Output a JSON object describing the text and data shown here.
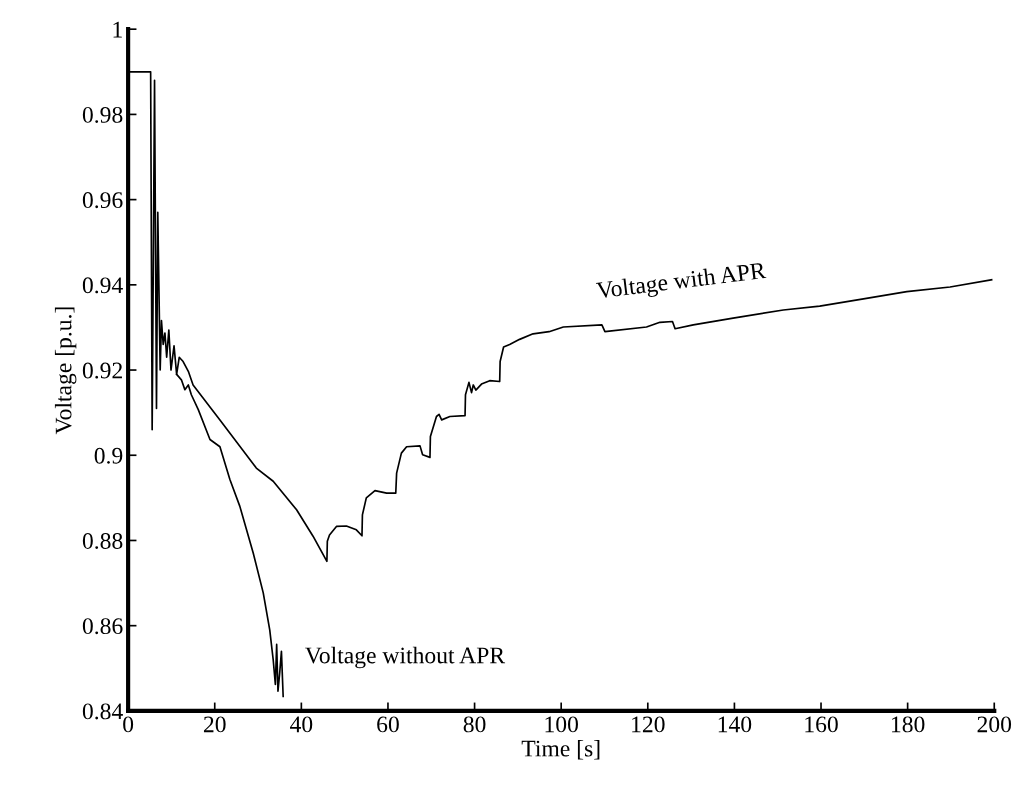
{
  "chart_data": {
    "type": "line",
    "xlabel": "Time [s]",
    "ylabel": "Voltage [p.u.]",
    "xlim": [
      0,
      200
    ],
    "ylim": [
      0.84,
      1
    ],
    "xticks": [
      0,
      20,
      40,
      60,
      80,
      100,
      120,
      140,
      160,
      180,
      200
    ],
    "yticks": [
      0.84,
      0.86,
      0.88,
      {
        "value": 0.9,
        "label": "0.9"
      },
      0.92,
      0.94,
      0.96,
      0.98,
      1
    ],
    "grid": false,
    "legend": false,
    "marker": "none",
    "line_style": "solid",
    "series": [
      {
        "name": "Voltage with APR",
        "color": "#000000",
        "x": [
          0,
          5.2,
          5.55,
          6.1,
          6.55,
          6.85,
          7.4,
          7.7,
          8.1,
          8.5,
          8.9,
          9.4,
          9.9,
          10.6,
          11.2,
          11.8,
          12.7,
          13.9,
          15.0,
          21.2,
          29.6,
          33.5,
          38.9,
          42.7,
          45.9,
          46.0,
          46.5,
          48.1,
          50.4,
          52.7,
          54.0,
          54.1,
          55.0,
          57.0,
          59.7,
          61.8,
          62.0,
          63.1,
          64.3,
          67.4,
          68.0,
          69.7,
          69.8,
          71.2,
          71.8,
          72.4,
          74.3,
          77.8,
          77.9,
          78.7,
          79.3,
          79.7,
          80.3,
          81.6,
          83.5,
          85.8,
          85.9,
          86.7,
          88.1,
          90.4,
          93.5,
          97.2,
          100.5,
          109.4,
          110.1,
          119.7,
          122.8,
          125.7,
          126.3,
          130.5,
          139.7,
          151.3,
          159.7,
          169.8,
          179.8,
          189.8,
          199.4
        ],
        "values": [
          0.99,
          0.99,
          0.906,
          0.988,
          0.911,
          0.957,
          0.92,
          0.9316,
          0.926,
          0.9287,
          0.923,
          0.9294,
          0.92,
          0.9257,
          0.919,
          0.923,
          0.922,
          0.9197,
          0.9165,
          0.9083,
          0.897,
          0.8939,
          0.8872,
          0.881,
          0.8751,
          0.8798,
          0.8813,
          0.8833,
          0.8834,
          0.8825,
          0.8811,
          0.886,
          0.89,
          0.8917,
          0.8911,
          0.8911,
          0.8958,
          0.9005,
          0.902,
          0.9022,
          0.9001,
          0.8995,
          0.9044,
          0.9091,
          0.9096,
          0.9083,
          0.9091,
          0.9093,
          0.9142,
          0.9171,
          0.9147,
          0.9165,
          0.9153,
          0.9167,
          0.9175,
          0.9173,
          0.922,
          0.9254,
          0.926,
          0.9272,
          0.9285,
          0.929,
          0.9301,
          0.9306,
          0.929,
          0.9301,
          0.9312,
          0.9314,
          0.9297,
          0.9306,
          0.9322,
          0.9341,
          0.935,
          0.9367,
          0.9384,
          0.9395,
          0.9412
        ]
      },
      {
        "name": "Voltage without APR",
        "color": "#000000",
        "x": [
          11.2,
          12.3,
          13.1,
          13.9,
          14.6,
          16.2,
          18.9,
          21.2,
          23.5,
          25.8,
          28.9,
          31.2,
          32.7,
          33.5,
          34.0,
          34.3,
          34.6,
          35.0,
          35.4,
          35.8
        ],
        "values": [
          0.919,
          0.9177,
          0.9154,
          0.9165,
          0.9142,
          0.9107,
          0.9037,
          0.902,
          0.8943,
          0.888,
          0.877,
          0.8677,
          0.859,
          0.852,
          0.8462,
          0.8556,
          0.8446,
          0.8489,
          0.854,
          0.8434
        ]
      }
    ]
  }
}
